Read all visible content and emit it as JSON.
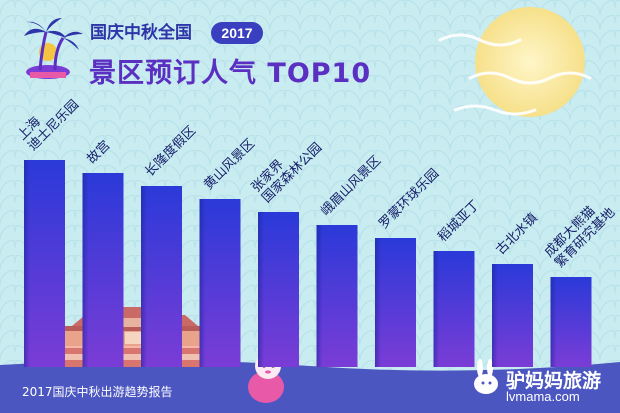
{
  "header": {
    "line1": "国庆中秋全国",
    "year": "2017",
    "line2": "景区预订人气 TOP10"
  },
  "footer": {
    "report": "2017国庆中秋出游趋势报告",
    "brand_cn": "驴妈妈旅游",
    "brand_url": "lvmama.com"
  },
  "colors": {
    "background": "#c9ecf1",
    "bar_top": "#2a3ad8",
    "bar_bottom": "#7b3cd6",
    "footer_band": "#4b56c0",
    "moon": "#f8e59a",
    "label": "#16206a"
  },
  "icons": [
    "palm-tree-icon",
    "rabbit-mascot-icon",
    "moon-icon",
    "tiananmen-icon"
  ],
  "chart_data": {
    "type": "bar",
    "title": "景区预订人气 TOP10",
    "xlabel": "",
    "ylabel": "",
    "axes_shown": false,
    "grid": false,
    "categories": [
      "上海迪士尼乐园",
      "故宫",
      "长隆度假区",
      "黄山风景区",
      "张家界国家森林公园",
      "峨眉山风景区",
      "罗蒙环球乐园",
      "稻城亚丁",
      "古北水镇",
      "成都大熊猫繁育研究基地"
    ],
    "category_lines": [
      [
        "上海",
        "迪士尼乐园"
      ],
      [
        "故宫"
      ],
      [
        "长隆度假区"
      ],
      [
        "黄山风景区"
      ],
      [
        "张家界",
        "国家森林公园"
      ],
      [
        "峨眉山风景区"
      ],
      [
        "罗蒙环球乐园"
      ],
      [
        "稻城亚丁"
      ],
      [
        "古北水镇"
      ],
      [
        "成都大熊猫",
        "繁育研究基地"
      ]
    ],
    "values": [
      10,
      9,
      8,
      7,
      6,
      5,
      4,
      3,
      2,
      1
    ],
    "value_note": "relative ranking (bar heights unlabeled)"
  }
}
